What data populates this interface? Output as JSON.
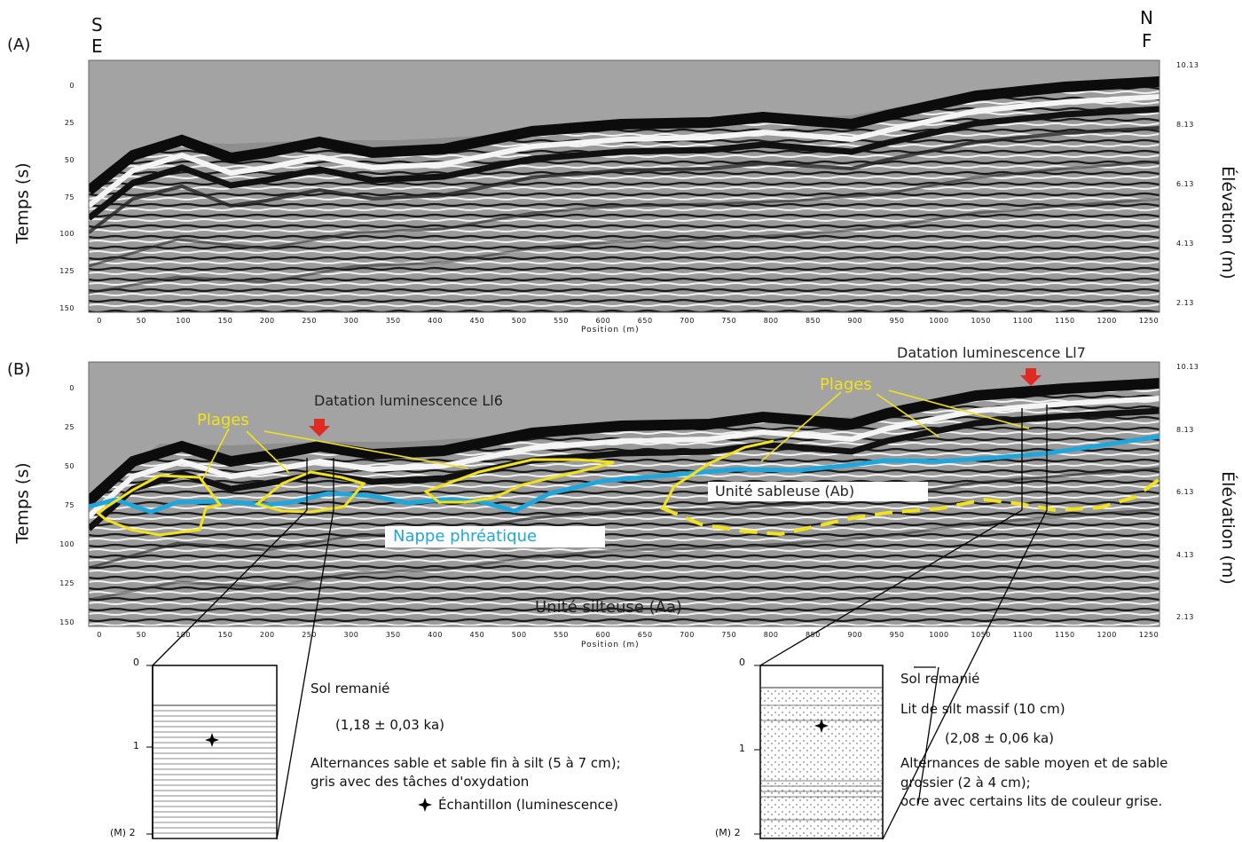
{
  "panel_a": {
    "label": "(A)",
    "dir_left": [
      "S",
      "E"
    ],
    "dir_right": [
      "N",
      "F"
    ],
    "left_axis_title": "Temps (s)",
    "right_axis_title": "Élévation (m)",
    "x_axis_title": "Position (m)"
  },
  "panel_b": {
    "label": "(B)",
    "left_axis_title": "Temps (s)",
    "right_axis_title": "Élévation (m)",
    "x_axis_title": "Position (m)",
    "annotations": {
      "dating_l6": "Datation luminescence Ll6",
      "dating_l7": "Datation luminescence Ll7",
      "plages_left": "Plages",
      "plages_right": "Plages",
      "sandy_unit": "Unité sableuse (Ab)",
      "water_table": "Nappe phréatique",
      "silty_unit": "Unité silteuse (Aa)"
    }
  },
  "axes": {
    "time_ticks": [
      "0",
      "25",
      "50",
      "75",
      "100",
      "125",
      "150"
    ],
    "elevation_ticks": [
      "10.13",
      "8.13",
      "6.13",
      "4.13",
      "2.13"
    ],
    "position_ticks": [
      "0",
      "50",
      "100",
      "150",
      "200",
      "250",
      "300",
      "350",
      "400",
      "450",
      "500",
      "550",
      "600",
      "650",
      "700",
      "750",
      "800",
      "850",
      "900",
      "950",
      "1000",
      "1050",
      "1100",
      "1150",
      "1200",
      "1250"
    ]
  },
  "log_left": {
    "depth_ticks": [
      "0",
      "1",
      "(M) 2"
    ],
    "texts": {
      "layer1": "Sol remanié",
      "age": "(1,18 ± 0,03 ka)",
      "layer2_l1": "Alternances sable et sable fin à silt (5 à 7 cm);",
      "layer2_l2": "gris avec des tâches d'oxydation",
      "legend": "Échantillon (luminescence)"
    }
  },
  "log_right": {
    "depth_ticks": [
      "0",
      "1",
      "(M) 2"
    ],
    "texts": {
      "layer1": "Sol remanié",
      "layer2": "Lit de silt massif (10 cm)",
      "age": "(2,08 ± 0,06 ka)",
      "layer3_l1": "Alternances de sable moyen et de sable",
      "layer3_l2": "grossier (2 à 4 cm);",
      "layer3_l3": "ocre avec certains lits de couleur grise."
    }
  },
  "colors": {
    "water_table": "#1fa6dc",
    "plages": "#f2e21b",
    "arrow": "#e02a24",
    "radar_bg": "#8c8c8c"
  }
}
